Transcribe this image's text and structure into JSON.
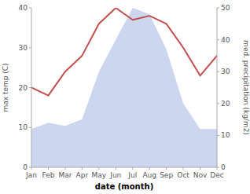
{
  "chart_data": {
    "type": "line",
    "xlabel": "date (month)",
    "ylabel": "max temp (C)",
    "y2label": "med. precipitation (kg/m2)",
    "categories": [
      "Jan",
      "Feb",
      "Mar",
      "Apr",
      "May",
      "Jun",
      "Jul",
      "Aug",
      "Sep",
      "Oct",
      "Nov",
      "Dec"
    ],
    "series": [
      {
        "type": "area",
        "axis": "y2",
        "color": "#b8c4e8",
        "values": [
          12,
          14,
          13,
          15,
          30,
          40,
          50,
          48,
          37,
          20,
          12,
          12
        ]
      },
      {
        "type": "line",
        "color": "#c0504d",
        "values": [
          20,
          18,
          24,
          28,
          36,
          40,
          37,
          38,
          36,
          30,
          23,
          28
        ]
      }
    ],
    "ylim": [
      0,
      40
    ],
    "yticks": [
      0,
      10,
      20,
      30,
      40
    ],
    "y2lim": [
      0,
      50
    ],
    "y2ticks": [
      0,
      10,
      20,
      30,
      40,
      50
    ],
    "grid": false
  }
}
